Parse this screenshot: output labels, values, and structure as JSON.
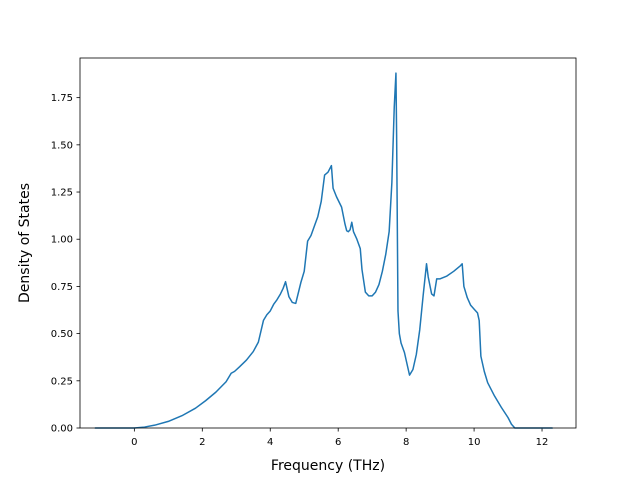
{
  "chart_data": {
    "type": "line",
    "title": "",
    "xlabel": "Frequency (THz)",
    "ylabel": "Density of States",
    "xlim": [
      -1.6,
      13.0
    ],
    "ylim": [
      0.0,
      1.96
    ],
    "grid": false,
    "legend": "none",
    "line_color": "#1f77b4",
    "xticks": [
      0,
      2,
      4,
      6,
      8,
      10,
      12
    ],
    "xtick_labels": [
      "0",
      "2",
      "4",
      "6",
      "8",
      "10",
      "12"
    ],
    "yticks": [
      0.0,
      0.25,
      0.5,
      0.75,
      1.0,
      1.25,
      1.5,
      1.75
    ],
    "ytick_labels": [
      "0.00",
      "0.25",
      "0.50",
      "0.75",
      "1.00",
      "1.25",
      "1.50",
      "1.75"
    ],
    "series": [
      {
        "x": [
          -1.15,
          -0.5,
          0.0,
          0.3,
          0.6,
          1.0,
          1.4,
          1.8,
          2.1,
          2.4,
          2.7,
          2.85,
          2.95,
          3.1,
          3.3,
          3.5,
          3.65,
          3.8,
          3.9,
          4.0,
          4.1,
          4.2,
          4.3,
          4.38,
          4.45,
          4.55,
          4.65,
          4.75,
          4.9,
          5.0,
          5.1,
          5.2,
          5.3,
          5.4,
          5.5,
          5.6,
          5.7,
          5.8,
          5.85,
          5.95,
          6.1,
          6.2,
          6.25,
          6.3,
          6.35,
          6.4,
          6.45,
          6.55,
          6.65,
          6.7,
          6.8,
          6.9,
          7.0,
          7.1,
          7.2,
          7.3,
          7.4,
          7.5,
          7.58,
          7.65,
          7.7,
          7.72,
          7.76,
          7.8,
          7.85,
          7.95,
          8.1,
          8.2,
          8.3,
          8.4,
          8.5,
          8.6,
          8.65,
          8.75,
          8.82,
          8.9,
          9.0,
          9.2,
          9.4,
          9.6,
          9.65,
          9.7,
          9.8,
          9.9,
          10.0,
          10.05,
          10.1,
          10.15,
          10.2,
          10.3,
          10.4,
          10.6,
          10.8,
          11.0,
          11.1,
          11.2,
          11.3,
          11.6,
          11.9,
          12.3
        ],
        "y": [
          0.0,
          0.0,
          0.0,
          0.005,
          0.015,
          0.035,
          0.065,
          0.105,
          0.145,
          0.19,
          0.245,
          0.29,
          0.3,
          0.325,
          0.36,
          0.405,
          0.455,
          0.57,
          0.6,
          0.62,
          0.655,
          0.68,
          0.71,
          0.74,
          0.775,
          0.695,
          0.665,
          0.66,
          0.77,
          0.83,
          0.99,
          1.02,
          1.07,
          1.12,
          1.2,
          1.34,
          1.355,
          1.39,
          1.27,
          1.225,
          1.17,
          1.08,
          1.045,
          1.04,
          1.05,
          1.09,
          1.04,
          1.0,
          0.95,
          0.84,
          0.72,
          0.7,
          0.7,
          0.72,
          0.76,
          0.83,
          0.92,
          1.04,
          1.3,
          1.7,
          1.88,
          1.55,
          0.62,
          0.5,
          0.45,
          0.4,
          0.28,
          0.31,
          0.39,
          0.52,
          0.7,
          0.87,
          0.8,
          0.71,
          0.7,
          0.79,
          0.79,
          0.805,
          0.83,
          0.86,
          0.87,
          0.75,
          0.69,
          0.65,
          0.63,
          0.62,
          0.61,
          0.57,
          0.38,
          0.3,
          0.24,
          0.17,
          0.11,
          0.055,
          0.02,
          0.0,
          0.0,
          0.0,
          0.0,
          0.0
        ]
      }
    ]
  }
}
